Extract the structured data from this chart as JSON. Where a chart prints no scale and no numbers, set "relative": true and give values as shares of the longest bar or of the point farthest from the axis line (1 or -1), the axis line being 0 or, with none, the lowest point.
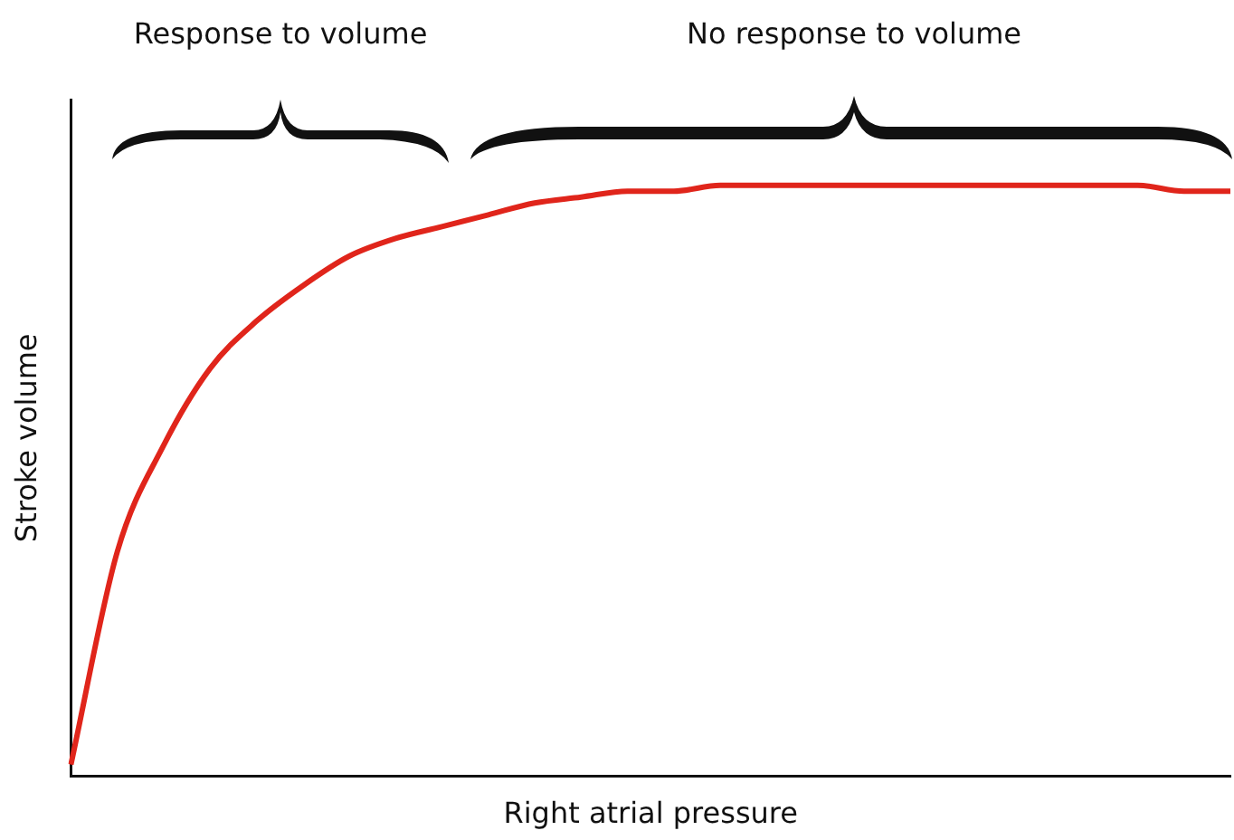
{
  "chart_data": {
    "type": "line",
    "relative": true,
    "xlabel": "Right atrial pressure",
    "ylabel": "Stroke volume",
    "annotations": [
      "Response to volume",
      "No response to volume"
    ],
    "categories": [
      null,
      null,
      null,
      null,
      null,
      null,
      null,
      null,
      null,
      null,
      null,
      null,
      null,
      null,
      null,
      null,
      null,
      null,
      null,
      null,
      null,
      null,
      null,
      null,
      null,
      null
    ],
    "series": [
      {
        "color": "#e0251b",
        "values": [
          0.02,
          0.38,
          0.56,
          0.69,
          0.77,
          0.83,
          0.88,
          0.91,
          0.93,
          0.95,
          0.97,
          0.98,
          0.99,
          0.99,
          1,
          1,
          1,
          1,
          1,
          1,
          1,
          1,
          1,
          1,
          0.99,
          0.99
        ]
      }
    ],
    "grid": false,
    "legend": false,
    "marker": "none",
    "line_style": "solid"
  }
}
